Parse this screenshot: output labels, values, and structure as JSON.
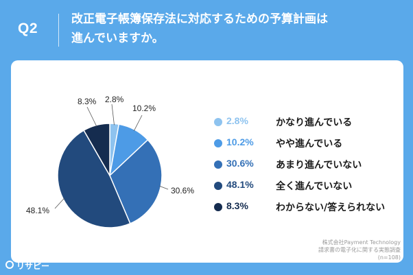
{
  "header": {
    "question_label": "Q2",
    "title_line1": "改正電子帳簿保存法に対応するための予算計画は",
    "title_line2": "進んでいますか。"
  },
  "chart_data": {
    "type": "pie",
    "slices": [
      {
        "label": "かなり進んでいる",
        "value": 2.8,
        "display": "2.8%",
        "color": "#8ec3ef"
      },
      {
        "label": "やや進んでいる",
        "value": 10.2,
        "display": "10.2%",
        "color": "#4d9be6"
      },
      {
        "label": "あまり進んでいない",
        "value": 30.6,
        "display": "30.6%",
        "color": "#3470b6"
      },
      {
        "label": "全く進んでいない",
        "value": 48.1,
        "display": "48.1%",
        "color": "#224a7d"
      },
      {
        "label": "わからない/答えられない",
        "value": 8.3,
        "display": "8.3%",
        "color": "#152c4f"
      }
    ],
    "start": "top",
    "direction": "clockwise",
    "legend_position": "right"
  },
  "source": {
    "line1": "株式会社Payment Technology",
    "line2": "請求書の電子化に関する実態調査",
    "line3": "(n=108)"
  },
  "logo": {
    "name": "リサピー",
    "icon": "risapi-logo-icon"
  }
}
